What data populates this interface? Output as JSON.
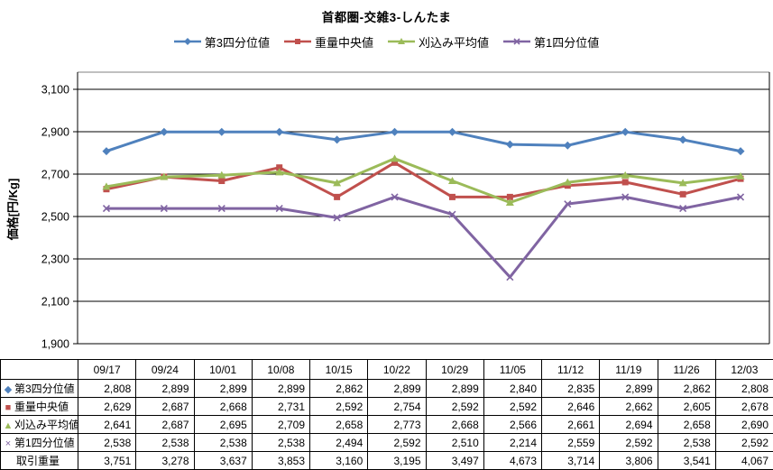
{
  "chart_data": {
    "type": "line",
    "title": "首都圏-交雑3-しんたま",
    "xlabel": "",
    "ylabel": "価格[円/Kg]",
    "categories": [
      "09/17",
      "09/24",
      "10/01",
      "10/08",
      "10/15",
      "10/22",
      "10/29",
      "11/05",
      "11/12",
      "11/19",
      "11/26",
      "12/03"
    ],
    "yticks": [
      1900,
      2100,
      2300,
      2500,
      2700,
      2900,
      3100
    ],
    "ylim": [
      1900,
      3168
    ],
    "grid": true,
    "legend_position": "top",
    "series": [
      {
        "name": "第3四分位値",
        "color": "#4F81BD",
        "marker": "diamond",
        "values": [
          2808,
          2899,
          2899,
          2899,
          2862,
          2899,
          2899,
          2840,
          2835,
          2899,
          2862,
          2808
        ]
      },
      {
        "name": "重量中央値",
        "color": "#C0504D",
        "marker": "square",
        "values": [
          2629,
          2687,
          2668,
          2731,
          2592,
          2754,
          2592,
          2592,
          2646,
          2662,
          2605,
          2678
        ]
      },
      {
        "name": "刈込み平均値",
        "color": "#9BBB59",
        "marker": "triangle",
        "values": [
          2641,
          2687,
          2695,
          2709,
          2658,
          2773,
          2668,
          2566,
          2661,
          2694,
          2658,
          2690
        ]
      },
      {
        "name": "第1四分位値",
        "color": "#8064A2",
        "marker": "x",
        "values": [
          2538,
          2538,
          2538,
          2538,
          2494,
          2592,
          2510,
          2214,
          2559,
          2592,
          2538,
          2592
        ]
      }
    ],
    "data_table_extra_rows": [
      {
        "name": "取引重量",
        "marker": "none",
        "values": [
          3751,
          3278,
          3637,
          3853,
          3160,
          3195,
          3497,
          4673,
          3714,
          3806,
          3541,
          4067
        ]
      }
    ]
  }
}
